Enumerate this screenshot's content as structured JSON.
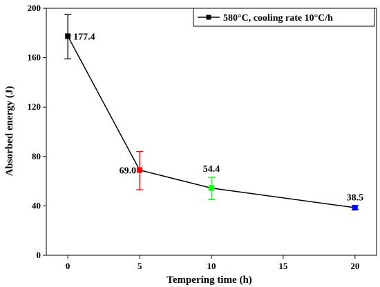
{
  "chart_data": {
    "type": "line",
    "title": "",
    "xlabel": "Tempering time (h)",
    "ylabel": "Absorbed energy (J)",
    "xlim": [
      -1.5,
      21.5
    ],
    "ylim": [
      0,
      200
    ],
    "x_ticks": [
      0,
      5,
      10,
      15,
      20
    ],
    "y_ticks": [
      0,
      40,
      80,
      120,
      160,
      200
    ],
    "grid": false,
    "legend_position": "top-right",
    "series": [
      {
        "name": "580°C, cooling rate 10°C/h",
        "color": "#000000",
        "points": [
          {
            "x": 0,
            "y": 177.4,
            "err_low": 159,
            "err_high": 195,
            "color": "#000000",
            "label": "177.4"
          },
          {
            "x": 5,
            "y": 69.0,
            "err_low": 53,
            "err_high": 84,
            "color": "#ff0000",
            "label": "69.0"
          },
          {
            "x": 10,
            "y": 54.4,
            "err_low": 45,
            "err_high": 63,
            "color": "#00ff00",
            "label": "54.4"
          },
          {
            "x": 20,
            "y": 38.5,
            "err_low": 37,
            "err_high": 40,
            "color": "#0000ff",
            "label": "38.5"
          }
        ]
      }
    ]
  }
}
